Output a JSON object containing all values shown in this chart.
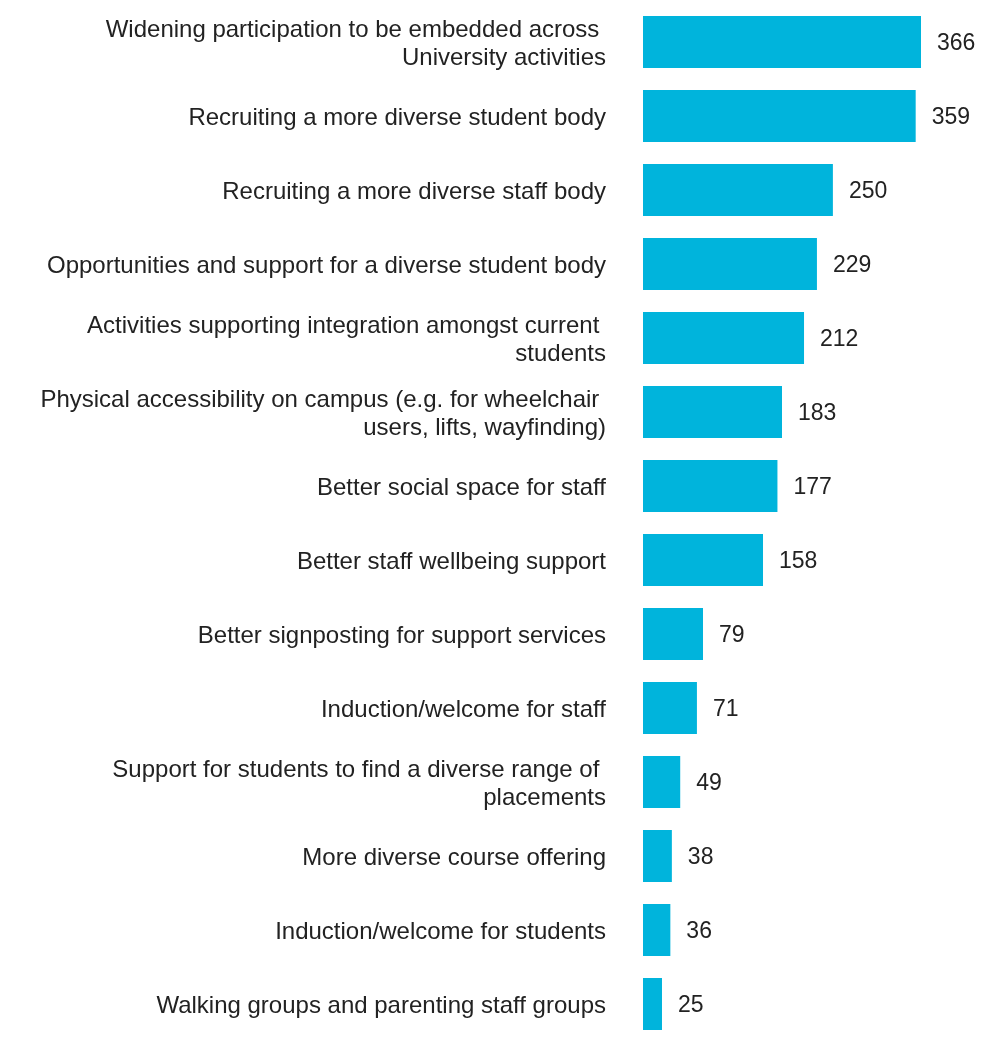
{
  "chart_data": {
    "type": "bar",
    "orientation": "horizontal",
    "data_labels": true,
    "categories": [
      "Widening participation to be embedded across University activities",
      "Recruiting a more diverse student body",
      "Recruiting a more diverse staff body",
      "Opportunities and support for a diverse student body",
      "Activities supporting integration amongst current students",
      "Physical accessibility on campus (e.g. for wheelchair users, lifts, wayfinding)",
      "Better social space for staff",
      "Better staff wellbeing support",
      "Better signposting for support services",
      "Induction/welcome for staff",
      "Support for students to find a diverse range of placements",
      "More diverse course offering",
      "Induction/welcome for students",
      "Walking groups and parenting staff groups"
    ],
    "values": [
      366,
      359,
      250,
      229,
      212,
      183,
      177,
      158,
      79,
      71,
      49,
      38,
      36,
      25
    ],
    "color": "#00b4dc"
  }
}
